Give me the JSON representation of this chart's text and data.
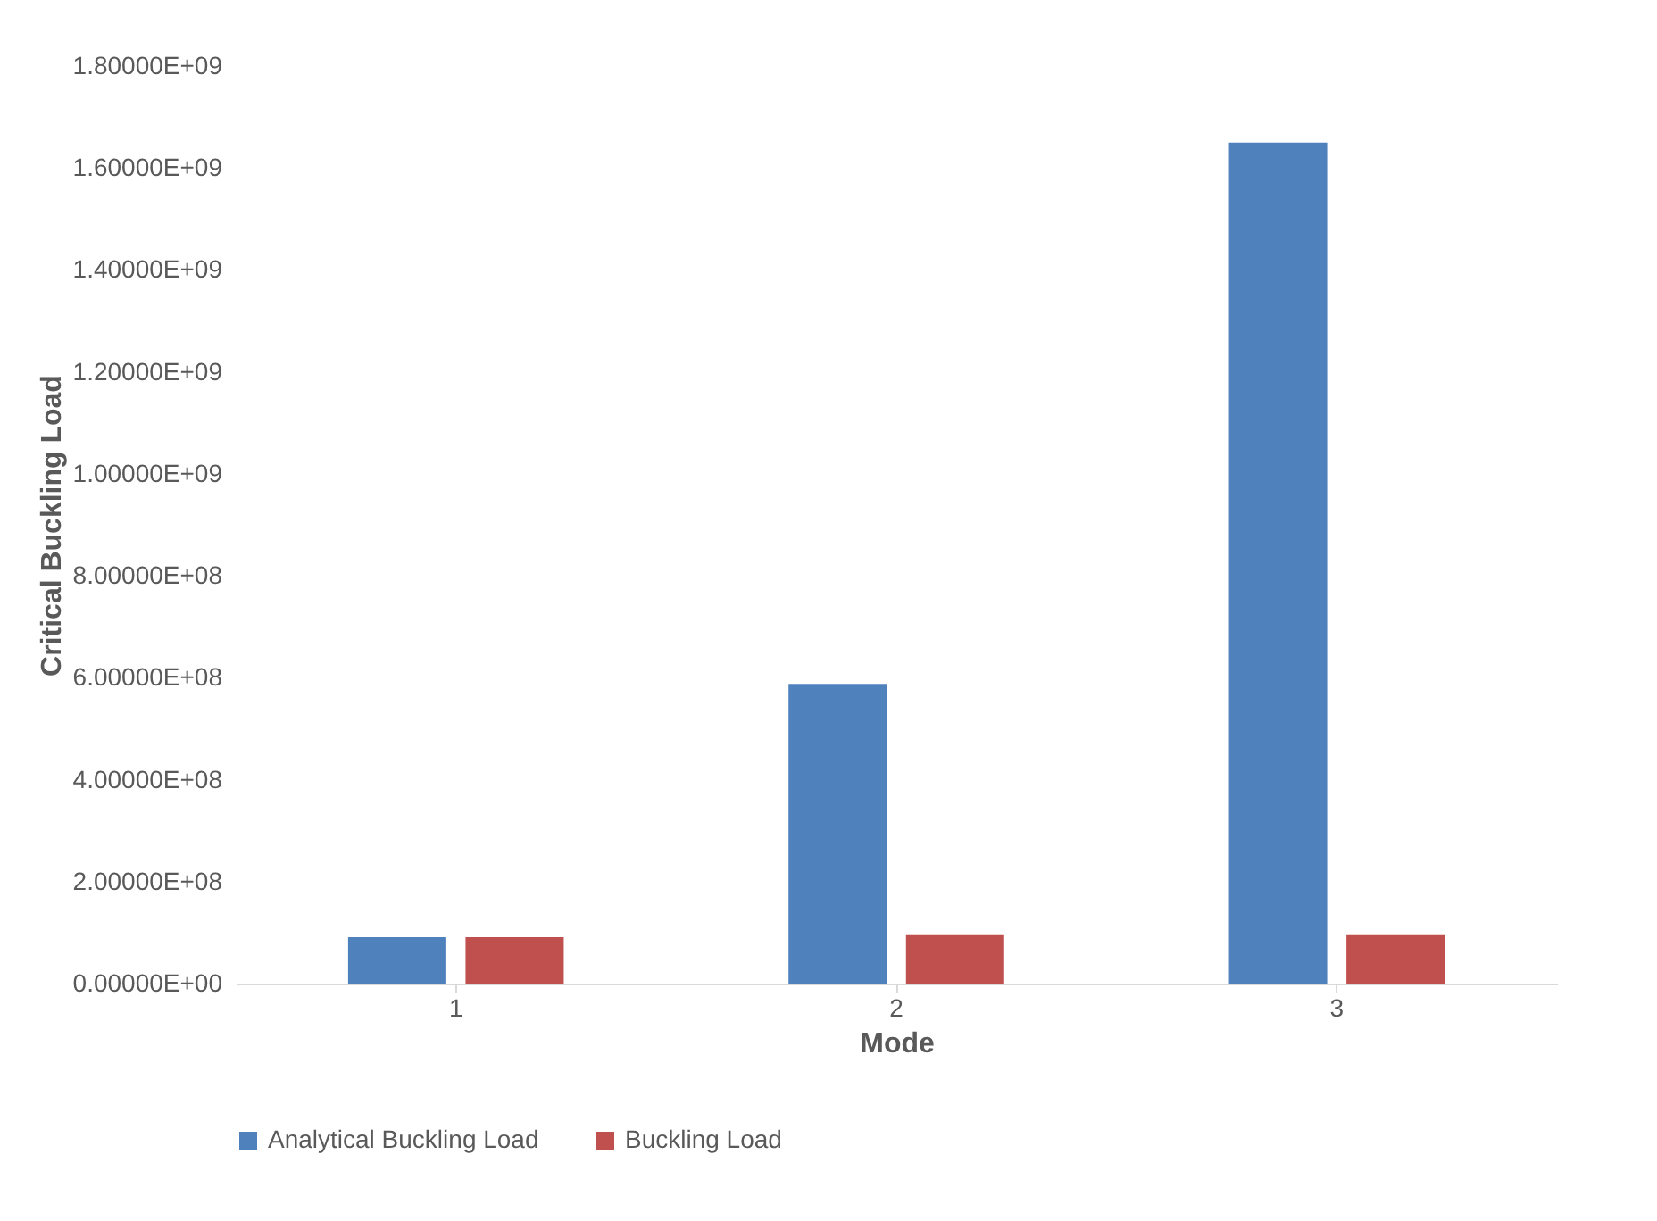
{
  "chart_data": {
    "type": "bar",
    "xlabel": "Mode",
    "ylabel": "Critical Buckling Load",
    "categories": [
      "1",
      "2",
      "3"
    ],
    "series": [
      {
        "name": "Analytical Buckling Load",
        "color": "#4f81bd",
        "values": [
          91000000,
          588000000,
          1650000000
        ]
      },
      {
        "name": "Buckling Load",
        "color": "#c0504d",
        "values": [
          91000000,
          95000000,
          95000000
        ]
      }
    ],
    "ylim": [
      0,
      1800000000
    ],
    "yticks": [
      {
        "value": 0,
        "label": "0.00000E+00"
      },
      {
        "value": 200000000,
        "label": "2.00000E+08"
      },
      {
        "value": 400000000,
        "label": "4.00000E+08"
      },
      {
        "value": 600000000,
        "label": "6.00000E+08"
      },
      {
        "value": 800000000,
        "label": "8.00000E+08"
      },
      {
        "value": 1000000000,
        "label": "1.00000E+09"
      },
      {
        "value": 1200000000,
        "label": "1.20000E+09"
      },
      {
        "value": 1400000000,
        "label": "1.40000E+09"
      },
      {
        "value": 1600000000,
        "label": "1.60000E+09"
      },
      {
        "value": 1800000000,
        "label": "1.80000E+09"
      }
    ],
    "grid": false,
    "legend": "bottom"
  }
}
